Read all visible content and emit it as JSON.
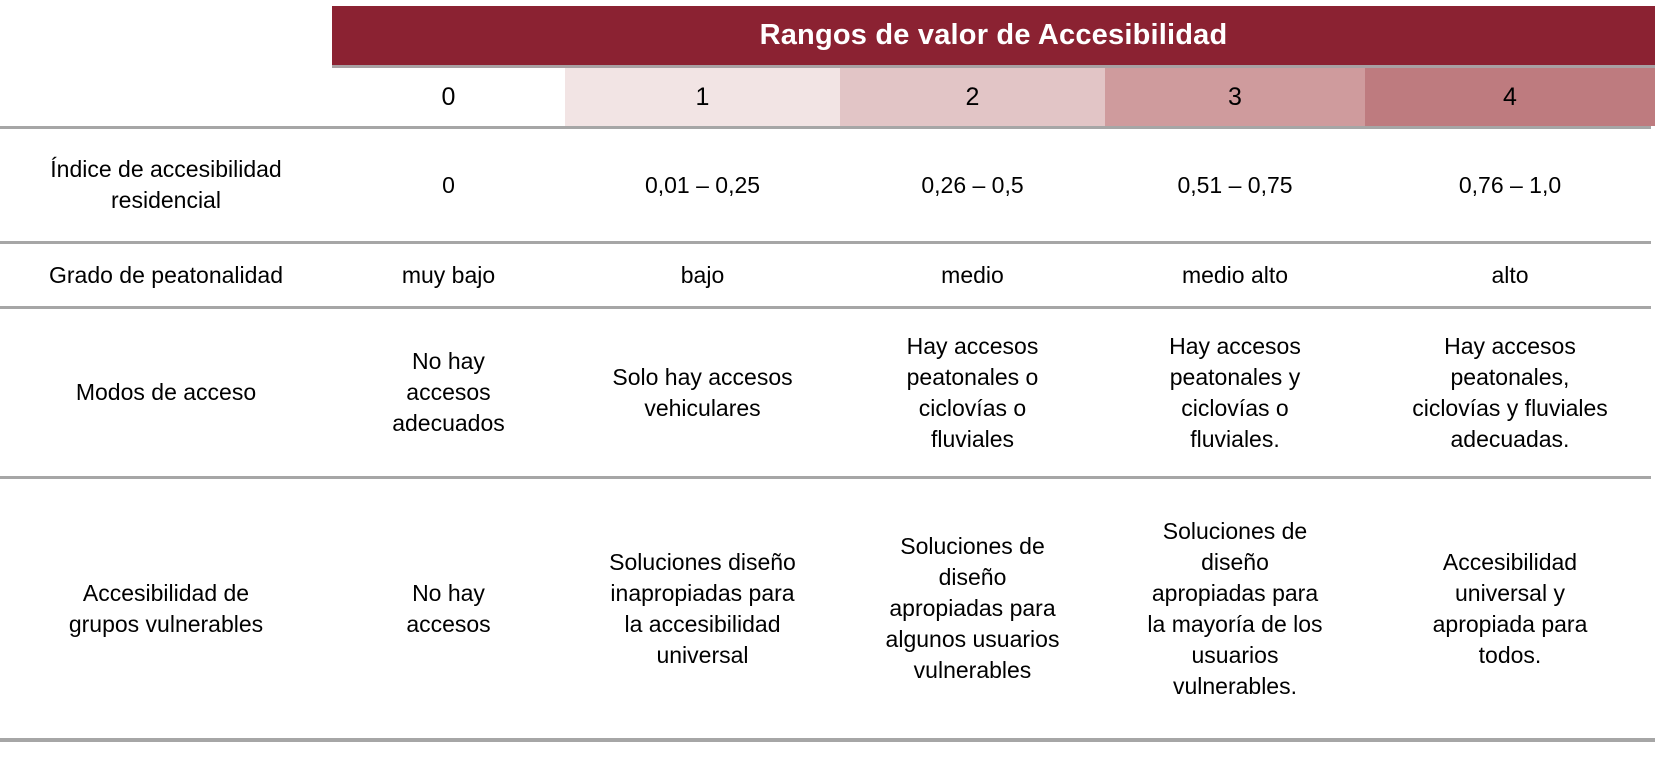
{
  "table": {
    "title": "Rangos de valor de Accesibilidad",
    "banner_color": "#8B2232",
    "rule_color": "#A6A6A6",
    "column_headers": [
      {
        "label": "0",
        "color": "#FFFFFF"
      },
      {
        "label": "1",
        "color": "#F2E4E4"
      },
      {
        "label": "2",
        "color": "#E2C5C6"
      },
      {
        "label": "3",
        "color": "#CF9B9D"
      },
      {
        "label": "4",
        "color": "#BE7B7F"
      }
    ],
    "rows": [
      {
        "label": "Índice de accesibilidad\nresidencial",
        "values": [
          "0",
          "0,01 – 0,25",
          "0,26 – 0,5",
          "0,51 – 0,75",
          "0,76 – 1,0"
        ]
      },
      {
        "label": "Grado de peatonalidad",
        "values": [
          "muy bajo",
          "bajo",
          "medio",
          "medio alto",
          "alto"
        ]
      },
      {
        "label": "Modos de acceso",
        "values": [
          "No hay\naccesos\nadecuados",
          "Solo hay accesos\nvehiculares",
          "Hay accesos\npeatonales o\nciclovías o\nfluviales",
          "Hay accesos\npeatonales y\nciclovías o\nfluviales.",
          "Hay accesos\npeatonales,\nciclovías y fluviales\nadecuadas."
        ]
      },
      {
        "label": "Accesibilidad de\ngrupos vulnerables",
        "values": [
          "No hay\naccesos",
          "Soluciones diseño\ninapropiadas para\nla accesibilidad\nuniversal",
          "Soluciones de\ndiseño\napropiadas para\nalgunos usuarios\nvulnerables",
          "Soluciones de\ndiseño\napropiadas para\nla mayoría de los\nusuarios\nvulnerables.",
          "Accesibilidad\nuniversal y\napropiada para\ntodos."
        ]
      }
    ]
  }
}
